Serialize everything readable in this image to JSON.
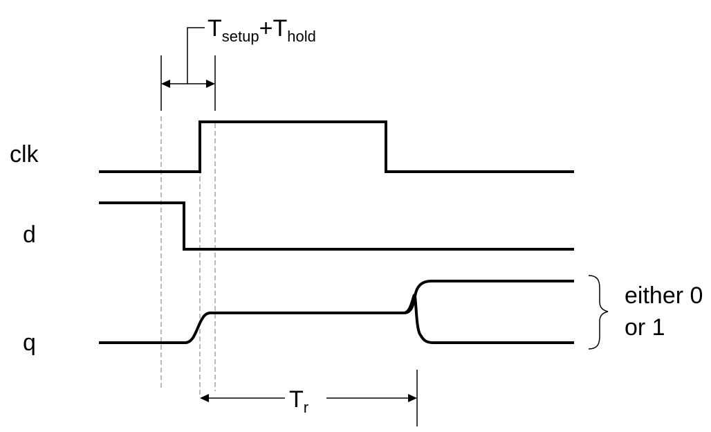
{
  "signals": {
    "clk": "clk",
    "d": "d",
    "q": "q"
  },
  "setup_hold": {
    "base": "T",
    "sub1": "setup",
    "plus": "+",
    "base2": "T",
    "sub2": "hold"
  },
  "tr": {
    "base": "T",
    "sub": "r"
  },
  "note": {
    "line1": "either 0",
    "line2": "or 1"
  },
  "colors": {
    "stroke": "#000000",
    "guide": "#8c8c8c",
    "background": "#ffffff"
  }
}
